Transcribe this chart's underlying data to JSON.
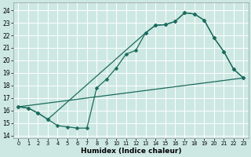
{
  "xlabel": "Humidex (Indice chaleur)",
  "bg_color": "#cde8e2",
  "line_color": "#1a6b5e",
  "grid_color": "#ffffff",
  "xlim": [
    -0.5,
    23.5
  ],
  "ylim": [
    13.8,
    24.6
  ],
  "yticks": [
    14,
    15,
    16,
    17,
    18,
    19,
    20,
    21,
    22,
    23,
    24
  ],
  "xticks": [
    0,
    1,
    2,
    3,
    4,
    5,
    6,
    7,
    8,
    9,
    10,
    11,
    12,
    13,
    14,
    15,
    16,
    17,
    18,
    19,
    20,
    21,
    22,
    23
  ],
  "line1_x": [
    0,
    23
  ],
  "line1_y": [
    16.3,
    18.6
  ],
  "line2_x": [
    0,
    1,
    2,
    3,
    4,
    5,
    6,
    7,
    8,
    9,
    10,
    11,
    12,
    13,
    14,
    15,
    16,
    17,
    18,
    19,
    20,
    21,
    22,
    23
  ],
  "line2_y": [
    16.3,
    16.2,
    15.8,
    15.3,
    14.8,
    14.7,
    14.6,
    14.6,
    17.8,
    18.5,
    19.4,
    20.5,
    20.8,
    22.2,
    22.8,
    22.85,
    23.1,
    23.8,
    23.7,
    23.2,
    21.8,
    20.7,
    19.3,
    18.6
  ],
  "line3_x": [
    0,
    1,
    2,
    3,
    13,
    14,
    15,
    16,
    17,
    18,
    19,
    20,
    21,
    22,
    23
  ],
  "line3_y": [
    16.3,
    16.2,
    15.8,
    15.3,
    22.2,
    22.8,
    22.85,
    23.1,
    23.8,
    23.7,
    23.2,
    21.8,
    20.7,
    19.3,
    18.6
  ],
  "markersize": 2.5,
  "linewidth": 0.9,
  "tick_fontsize": 5.5,
  "xlabel_fontsize": 6.5
}
